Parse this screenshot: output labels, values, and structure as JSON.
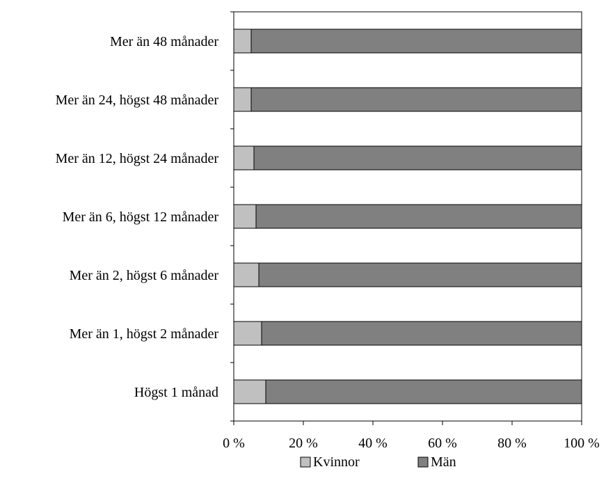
{
  "chart_data": {
    "type": "bar",
    "orientation": "horizontal",
    "stacked": "percent",
    "categories": [
      "Mer än 48 månader",
      "Mer än 24, högst 48 månader",
      "Mer än 12, högst 24 månader",
      "Mer än 6, högst 12 månader",
      "Mer än 2, högst 6 månader",
      "Mer än 1, högst 2 månader",
      "Högst 1 månad"
    ],
    "series": [
      {
        "name": "Kvinnor",
        "color": "#c0c0c0",
        "values": [
          5,
          5,
          5.8,
          6.4,
          7.2,
          8,
          9.2
        ]
      },
      {
        "name": "Män",
        "color": "#808080",
        "values": [
          95,
          95,
          94.2,
          93.6,
          92.8,
          92,
          90.8
        ]
      }
    ],
    "x_ticks": [
      "0 %",
      "20 %",
      "40 %",
      "60 %",
      "80 %",
      "100 %"
    ],
    "xlim": [
      0,
      100
    ],
    "grid": false,
    "legend_position": "bottom"
  }
}
